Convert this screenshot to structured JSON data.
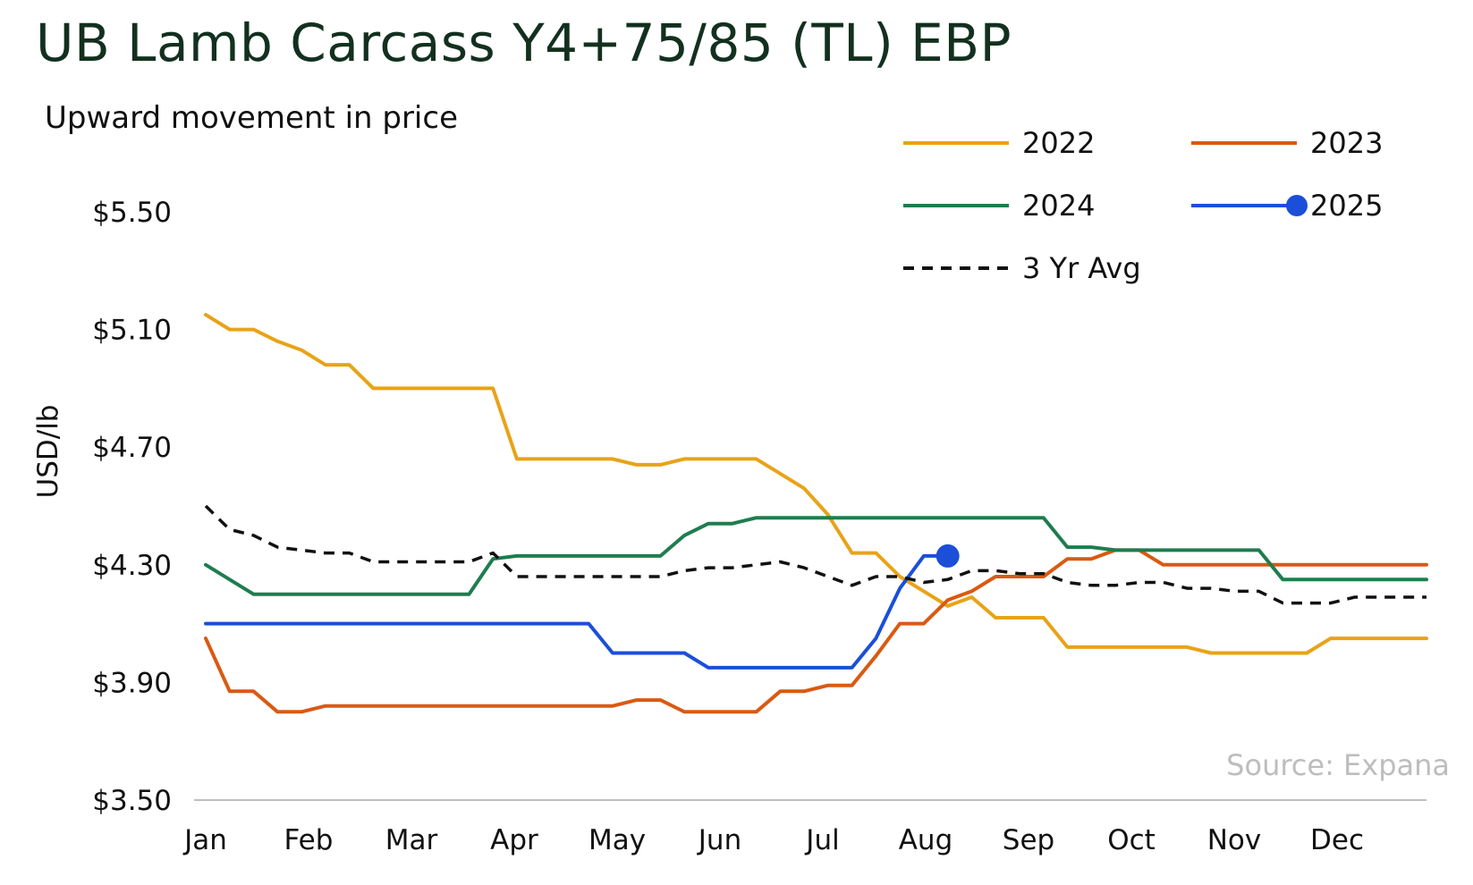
{
  "title": "UB Lamb Carcass Y4+75/85 (TL) EBP",
  "subtitle": "Upward movement in price",
  "source": "Source: Expana",
  "chart_data": {
    "type": "line",
    "ylabel": "USD/lb",
    "ylim": [
      3.5,
      5.5
    ],
    "yticks": [
      5.5,
      5.1,
      4.7,
      4.3,
      3.9,
      3.5
    ],
    "ytick_labels": [
      "$5.50",
      "$5.10",
      "$4.70",
      "$4.30",
      "$3.90",
      "$3.50"
    ],
    "months": [
      "Jan",
      "Feb",
      "Mar",
      "Apr",
      "May",
      "Jun",
      "Jul",
      "Aug",
      "Sep",
      "Oct",
      "Nov",
      "Dec"
    ],
    "weeks_per_year": 52,
    "legend_position": "top-right",
    "grid": false,
    "series": [
      {
        "name": "2022",
        "color": "#e8a317",
        "dash": "none",
        "points": [
          [
            0,
            5.15
          ],
          [
            1,
            5.1
          ],
          [
            2,
            5.1
          ],
          [
            3,
            5.06
          ],
          [
            4,
            5.03
          ],
          [
            5,
            4.98
          ],
          [
            6,
            4.98
          ],
          [
            7,
            4.9
          ],
          [
            8,
            4.9
          ],
          [
            9,
            4.9
          ],
          [
            10,
            4.9
          ],
          [
            11,
            4.9
          ],
          [
            12,
            4.9
          ],
          [
            13,
            4.66
          ],
          [
            14,
            4.66
          ],
          [
            15,
            4.66
          ],
          [
            16,
            4.66
          ],
          [
            17,
            4.66
          ],
          [
            18,
            4.64
          ],
          [
            19,
            4.64
          ],
          [
            20,
            4.66
          ],
          [
            21,
            4.66
          ],
          [
            22,
            4.66
          ],
          [
            23,
            4.66
          ],
          [
            24,
            4.61
          ],
          [
            25,
            4.56
          ],
          [
            26,
            4.47
          ],
          [
            27,
            4.34
          ],
          [
            28,
            4.34
          ],
          [
            29,
            4.26
          ],
          [
            30,
            4.21
          ],
          [
            31,
            4.16
          ],
          [
            32,
            4.19
          ],
          [
            33,
            4.12
          ],
          [
            34,
            4.12
          ],
          [
            35,
            4.12
          ],
          [
            36,
            4.02
          ],
          [
            37,
            4.02
          ],
          [
            38,
            4.02
          ],
          [
            39,
            4.02
          ],
          [
            40,
            4.02
          ],
          [
            41,
            4.02
          ],
          [
            42,
            4.0
          ],
          [
            43,
            4.0
          ],
          [
            44,
            4.0
          ],
          [
            45,
            4.0
          ],
          [
            46,
            4.0
          ],
          [
            47,
            4.05
          ],
          [
            48,
            4.05
          ],
          [
            49,
            4.05
          ],
          [
            50,
            4.05
          ],
          [
            51,
            4.05
          ]
        ]
      },
      {
        "name": "2023",
        "color": "#d95a12",
        "dash": "none",
        "points": [
          [
            0,
            4.05
          ],
          [
            1,
            3.87
          ],
          [
            2,
            3.87
          ],
          [
            3,
            3.8
          ],
          [
            4,
            3.8
          ],
          [
            5,
            3.82
          ],
          [
            6,
            3.82
          ],
          [
            7,
            3.82
          ],
          [
            8,
            3.82
          ],
          [
            9,
            3.82
          ],
          [
            10,
            3.82
          ],
          [
            11,
            3.82
          ],
          [
            12,
            3.82
          ],
          [
            13,
            3.82
          ],
          [
            14,
            3.82
          ],
          [
            15,
            3.82
          ],
          [
            16,
            3.82
          ],
          [
            17,
            3.82
          ],
          [
            18,
            3.84
          ],
          [
            19,
            3.84
          ],
          [
            20,
            3.8
          ],
          [
            21,
            3.8
          ],
          [
            22,
            3.8
          ],
          [
            23,
            3.8
          ],
          [
            24,
            3.87
          ],
          [
            25,
            3.87
          ],
          [
            26,
            3.89
          ],
          [
            27,
            3.89
          ],
          [
            28,
            3.99
          ],
          [
            29,
            4.1
          ],
          [
            30,
            4.1
          ],
          [
            31,
            4.18
          ],
          [
            32,
            4.21
          ],
          [
            33,
            4.26
          ],
          [
            34,
            4.26
          ],
          [
            35,
            4.26
          ],
          [
            36,
            4.32
          ],
          [
            37,
            4.32
          ],
          [
            38,
            4.35
          ],
          [
            39,
            4.35
          ],
          [
            40,
            4.3
          ],
          [
            41,
            4.3
          ],
          [
            42,
            4.3
          ],
          [
            43,
            4.3
          ],
          [
            44,
            4.3
          ],
          [
            45,
            4.3
          ],
          [
            46,
            4.3
          ],
          [
            47,
            4.3
          ],
          [
            48,
            4.3
          ],
          [
            49,
            4.3
          ],
          [
            50,
            4.3
          ],
          [
            51,
            4.3
          ]
        ]
      },
      {
        "name": "2024",
        "color": "#1e7d4f",
        "dash": "none",
        "points": [
          [
            0,
            4.3
          ],
          [
            1,
            4.25
          ],
          [
            2,
            4.2
          ],
          [
            3,
            4.2
          ],
          [
            4,
            4.2
          ],
          [
            5,
            4.2
          ],
          [
            6,
            4.2
          ],
          [
            7,
            4.2
          ],
          [
            8,
            4.2
          ],
          [
            9,
            4.2
          ],
          [
            10,
            4.2
          ],
          [
            11,
            4.2
          ],
          [
            12,
            4.32
          ],
          [
            13,
            4.33
          ],
          [
            14,
            4.33
          ],
          [
            15,
            4.33
          ],
          [
            16,
            4.33
          ],
          [
            17,
            4.33
          ],
          [
            18,
            4.33
          ],
          [
            19,
            4.33
          ],
          [
            20,
            4.4
          ],
          [
            21,
            4.44
          ],
          [
            22,
            4.44
          ],
          [
            23,
            4.46
          ],
          [
            24,
            4.46
          ],
          [
            25,
            4.46
          ],
          [
            26,
            4.46
          ],
          [
            27,
            4.46
          ],
          [
            28,
            4.46
          ],
          [
            29,
            4.46
          ],
          [
            30,
            4.46
          ],
          [
            31,
            4.46
          ],
          [
            32,
            4.46
          ],
          [
            33,
            4.46
          ],
          [
            34,
            4.46
          ],
          [
            35,
            4.46
          ],
          [
            36,
            4.36
          ],
          [
            37,
            4.36
          ],
          [
            38,
            4.35
          ],
          [
            39,
            4.35
          ],
          [
            40,
            4.35
          ],
          [
            41,
            4.35
          ],
          [
            42,
            4.35
          ],
          [
            43,
            4.35
          ],
          [
            44,
            4.35
          ],
          [
            45,
            4.25
          ],
          [
            46,
            4.25
          ],
          [
            47,
            4.25
          ],
          [
            48,
            4.25
          ],
          [
            49,
            4.25
          ],
          [
            50,
            4.25
          ],
          [
            51,
            4.25
          ]
        ]
      },
      {
        "name": "2025",
        "color": "#1b4fd8",
        "dash": "none",
        "end_marker": true,
        "points": [
          [
            0,
            4.1
          ],
          [
            1,
            4.1
          ],
          [
            2,
            4.1
          ],
          [
            3,
            4.1
          ],
          [
            4,
            4.1
          ],
          [
            5,
            4.1
          ],
          [
            6,
            4.1
          ],
          [
            7,
            4.1
          ],
          [
            8,
            4.1
          ],
          [
            9,
            4.1
          ],
          [
            10,
            4.1
          ],
          [
            11,
            4.1
          ],
          [
            12,
            4.1
          ],
          [
            13,
            4.1
          ],
          [
            14,
            4.1
          ],
          [
            15,
            4.1
          ],
          [
            16,
            4.1
          ],
          [
            17,
            4.0
          ],
          [
            18,
            4.0
          ],
          [
            19,
            4.0
          ],
          [
            20,
            4.0
          ],
          [
            21,
            3.95
          ],
          [
            22,
            3.95
          ],
          [
            23,
            3.95
          ],
          [
            24,
            3.95
          ],
          [
            25,
            3.95
          ],
          [
            26,
            3.95
          ],
          [
            27,
            3.95
          ],
          [
            28,
            4.05
          ],
          [
            29,
            4.22
          ],
          [
            30,
            4.33
          ],
          [
            31,
            4.33
          ]
        ]
      },
      {
        "name": "3 Yr Avg",
        "color": "#111111",
        "dash": "12,9",
        "points": [
          [
            0,
            4.5
          ],
          [
            1,
            4.42
          ],
          [
            2,
            4.4
          ],
          [
            3,
            4.36
          ],
          [
            4,
            4.35
          ],
          [
            5,
            4.34
          ],
          [
            6,
            4.34
          ],
          [
            7,
            4.31
          ],
          [
            8,
            4.31
          ],
          [
            9,
            4.31
          ],
          [
            10,
            4.31
          ],
          [
            11,
            4.31
          ],
          [
            12,
            4.34
          ],
          [
            13,
            4.26
          ],
          [
            14,
            4.26
          ],
          [
            15,
            4.26
          ],
          [
            16,
            4.26
          ],
          [
            17,
            4.26
          ],
          [
            18,
            4.26
          ],
          [
            19,
            4.26
          ],
          [
            20,
            4.28
          ],
          [
            21,
            4.29
          ],
          [
            22,
            4.29
          ],
          [
            23,
            4.3
          ],
          [
            24,
            4.31
          ],
          [
            25,
            4.29
          ],
          [
            26,
            4.26
          ],
          [
            27,
            4.23
          ],
          [
            28,
            4.26
          ],
          [
            29,
            4.26
          ],
          [
            30,
            4.24
          ],
          [
            31,
            4.25
          ],
          [
            32,
            4.28
          ],
          [
            33,
            4.28
          ],
          [
            34,
            4.27
          ],
          [
            35,
            4.27
          ],
          [
            36,
            4.24
          ],
          [
            37,
            4.23
          ],
          [
            38,
            4.23
          ],
          [
            39,
            4.24
          ],
          [
            40,
            4.24
          ],
          [
            41,
            4.22
          ],
          [
            42,
            4.22
          ],
          [
            43,
            4.21
          ],
          [
            44,
            4.21
          ],
          [
            45,
            4.17
          ],
          [
            46,
            4.17
          ],
          [
            47,
            4.17
          ],
          [
            48,
            4.19
          ],
          [
            49,
            4.19
          ],
          [
            50,
            4.19
          ],
          [
            51,
            4.19
          ]
        ]
      }
    ]
  }
}
